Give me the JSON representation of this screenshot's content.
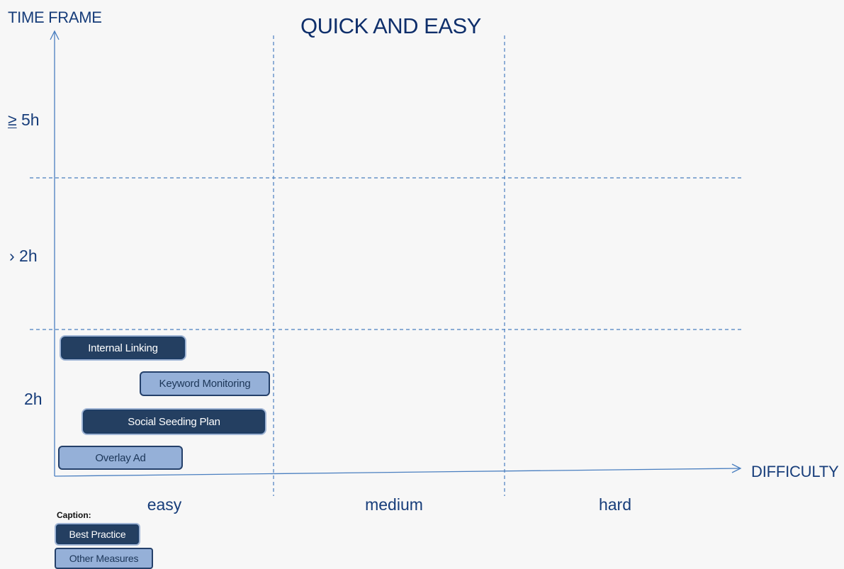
{
  "title": "QUICK AND EASY",
  "axes": {
    "y_title": "TIME FRAME",
    "x_title": "DIFFICULTY",
    "y_levels": [
      {
        "prefix": "≥",
        "text": " 5h"
      },
      {
        "prefix": "›",
        "text": " 2h"
      },
      {
        "prefix": "",
        "text": "2h"
      }
    ],
    "x_levels": [
      "easy",
      "medium",
      "hard"
    ]
  },
  "measures": [
    {
      "label": "Internal Linking",
      "type": "Best Practice"
    },
    {
      "label": "Keyword Monitoring",
      "type": "Other Measures"
    },
    {
      "label": "Social Seeding Plan",
      "type": "Best Practice"
    },
    {
      "label": "Overlay Ad",
      "type": "Other Measures"
    }
  ],
  "caption": {
    "title": "Caption:",
    "items": [
      "Best Practice",
      "Other Measures"
    ]
  },
  "colors": {
    "best_practice": "#243f61",
    "other_measures": "#95b0d8",
    "grid_line": "#4a7fc0",
    "text": "#173d7a"
  }
}
